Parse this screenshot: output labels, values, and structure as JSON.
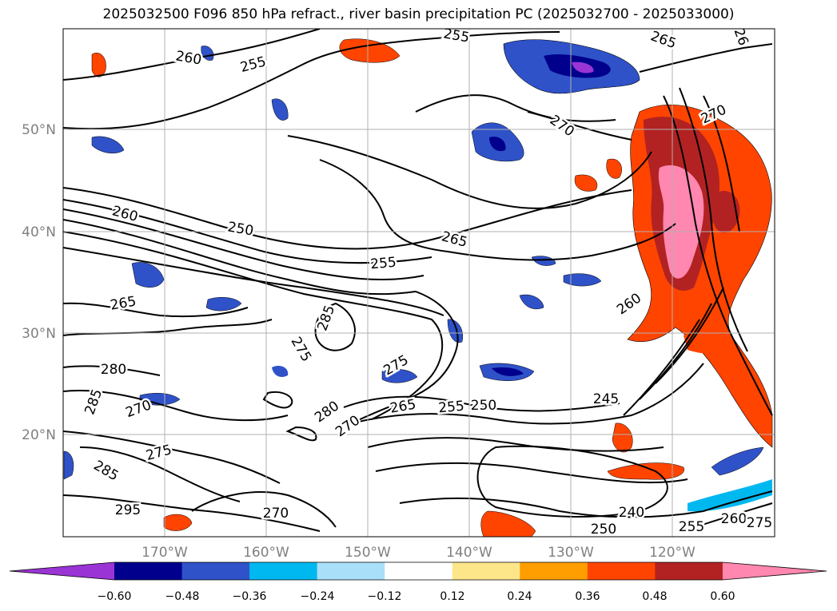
{
  "title": "2025032500 F096 850 hPa refract., river basin precipitation PC (2025032700 - 2025033000)",
  "lat_labels": [
    "50°N",
    "40°N",
    "30°N",
    "20°N"
  ],
  "lon_labels": [
    "170°W",
    "160°W",
    "150°W",
    "140°W",
    "130°W",
    "120°W"
  ],
  "colorbar": {
    "ticks": [
      "−0.60",
      "−0.48",
      "−0.36",
      "−0.24",
      "−0.12",
      "0.12",
      "0.24",
      "0.36",
      "0.48",
      "0.60"
    ],
    "colors": [
      "#9a34d4",
      "#00008c",
      "#2f52c8",
      "#00b8f0",
      "#aadffa",
      "#ffffff",
      "#fde68a",
      "#ff9e00",
      "#ff4400",
      "#b22222",
      "#ff87b0"
    ]
  },
  "contour_labels": [
    {
      "text": "260"
    },
    {
      "text": "255"
    },
    {
      "text": "255"
    },
    {
      "text": "265"
    },
    {
      "text": "26"
    },
    {
      "text": "270"
    },
    {
      "text": "270"
    },
    {
      "text": "260"
    },
    {
      "text": "250"
    },
    {
      "text": "255"
    },
    {
      "text": "265"
    },
    {
      "text": "265"
    },
    {
      "text": "285"
    },
    {
      "text": "260"
    },
    {
      "text": "275"
    },
    {
      "text": "280"
    },
    {
      "text": "275"
    },
    {
      "text": "285"
    },
    {
      "text": "270"
    },
    {
      "text": "280"
    },
    {
      "text": "270"
    },
    {
      "text": "265"
    },
    {
      "text": "255"
    },
    {
      "text": "250"
    },
    {
      "text": "245"
    },
    {
      "text": "275"
    },
    {
      "text": "285"
    },
    {
      "text": "295"
    },
    {
      "text": "270"
    },
    {
      "text": "240"
    },
    {
      "text": "250"
    },
    {
      "text": "255"
    },
    {
      "text": "260"
    },
    {
      "text": "275"
    }
  ]
}
